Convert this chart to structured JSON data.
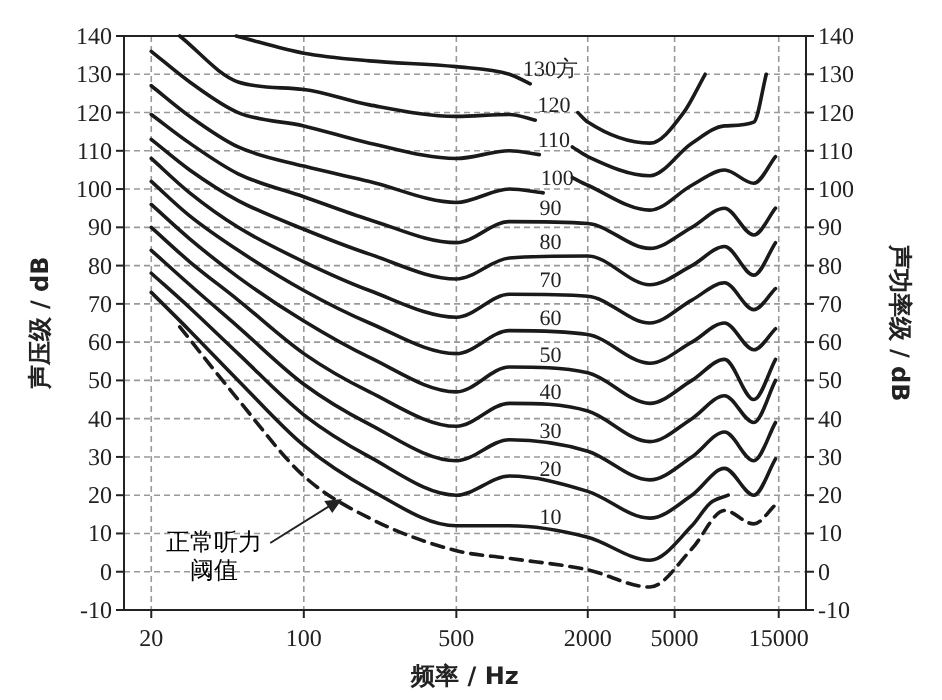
{
  "chart_data": {
    "type": "line",
    "xlabel": "频率 / Hz",
    "ylabel": "声压级 / dB",
    "y2label": "声功率级 / dB",
    "log": "x",
    "grid": true,
    "xlim": [
      15,
      20000
    ],
    "xticks": [
      20,
      100,
      500,
      2000,
      5000,
      15000
    ],
    "ylim": [
      -10,
      140
    ],
    "yticks": [
      -10,
      0,
      10,
      20,
      30,
      40,
      50,
      60,
      70,
      80,
      90,
      100,
      110,
      120,
      130,
      140
    ],
    "y2lim": [
      -10,
      140
    ],
    "y2ticks": [
      -10,
      0,
      10,
      20,
      30,
      40,
      50,
      60,
      70,
      80,
      90,
      100,
      110,
      120,
      130,
      140
    ],
    "series": [
      {
        "name": "130方",
        "color": "#1a1a1a",
        "x": [
          49,
          100,
          200,
          500,
          875,
          1090
        ],
        "values": [
          140,
          135.5,
          133.5,
          132,
          130,
          127.5
        ]
      },
      {
        "name": "120",
        "color": "#1a1a1a",
        "x": [
          27,
          50,
          100,
          200,
          500,
          875,
          1150,
          1400,
          1800,
          2000,
          3850,
          5500,
          6900
        ],
        "values": [
          140,
          128,
          126,
          122,
          119,
          119.5,
          118,
          null,
          120,
          117.5,
          112,
          120,
          130
        ]
      },
      {
        "name": "110",
        "color": "#1a1a1a",
        "x": [
          20,
          30,
          50,
          100,
          200,
          500,
          875,
          1200,
          1400,
          1700,
          2000,
          3850,
          6000,
          8470,
          11530,
          13150
        ],
        "values": [
          136,
          128,
          120,
          116.5,
          112,
          108,
          110,
          109,
          null,
          111,
          108.5,
          103.5,
          112,
          116.5,
          117.5,
          130
        ]
      },
      {
        "name": "100",
        "color": "#1a1a1a",
        "x": [
          20,
          30,
          50,
          100,
          200,
          500,
          875,
          1250,
          1450,
          1700,
          2000,
          3850,
          6000,
          8470,
          11530,
          14500
        ],
        "values": [
          127,
          119,
          111,
          106,
          102,
          96.5,
          100,
          99,
          null,
          103,
          101,
          94.5,
          101,
          105,
          101.5,
          108.5
        ]
      },
      {
        "name": "90",
        "color": "#1a1a1a",
        "x": [
          20,
          30,
          50,
          100,
          200,
          500,
          875,
          2000,
          3850,
          6000,
          8470,
          11530,
          14500
        ],
        "values": [
          119.5,
          112,
          104,
          98,
          92,
          86,
          91.5,
          91,
          84.5,
          90,
          95,
          88,
          95
        ]
      },
      {
        "name": "80",
        "color": "#1a1a1a",
        "x": [
          20,
          30,
          50,
          100,
          200,
          500,
          875,
          2000,
          3850,
          6000,
          8470,
          11530,
          14500
        ],
        "values": [
          113,
          105,
          97,
          89.5,
          83,
          76.5,
          82,
          82.5,
          75,
          80,
          85,
          77.5,
          86
        ]
      },
      {
        "name": "70",
        "color": "#1a1a1a",
        "x": [
          20,
          30,
          50,
          100,
          200,
          500,
          875,
          2000,
          3850,
          6000,
          8470,
          11530,
          14500
        ],
        "values": [
          108,
          99,
          90,
          81,
          73.5,
          66.5,
          72.5,
          72,
          65,
          71,
          75.5,
          68.5,
          74
        ]
      },
      {
        "name": "60",
        "color": "#1a1a1a",
        "x": [
          20,
          30,
          50,
          100,
          200,
          500,
          875,
          2000,
          3850,
          6000,
          8470,
          11530,
          14500
        ],
        "values": [
          102,
          93,
          84,
          73.5,
          65,
          57,
          63,
          62,
          54.5,
          60,
          65,
          58,
          63.5
        ]
      },
      {
        "name": "50",
        "color": "#1a1a1a",
        "x": [
          20,
          30,
          50,
          100,
          200,
          500,
          875,
          2000,
          3850,
          6000,
          8470,
          11530,
          14500
        ],
        "values": [
          96,
          87,
          77,
          65.5,
          56,
          47,
          53.5,
          52,
          44,
          50,
          55.5,
          45,
          55.5
        ]
      },
      {
        "name": "40",
        "color": "#1a1a1a",
        "x": [
          20,
          30,
          50,
          100,
          200,
          500,
          875,
          2000,
          3850,
          6000,
          8470,
          11530,
          14500
        ],
        "values": [
          90,
          81,
          71,
          57,
          47,
          38,
          44,
          42,
          34,
          40,
          46,
          39,
          50
        ]
      },
      {
        "name": "30",
        "color": "#1a1a1a",
        "x": [
          20,
          30,
          50,
          100,
          200,
          500,
          875,
          2000,
          3850,
          6000,
          8470,
          11530,
          14500
        ],
        "values": [
          84,
          75,
          64,
          49,
          38.5,
          29,
          34.5,
          31.5,
          24,
          30,
          36.5,
          29,
          39
        ]
      },
      {
        "name": "20",
        "color": "#1a1a1a",
        "x": [
          20,
          30,
          50,
          100,
          200,
          500,
          875,
          2000,
          3850,
          6000,
          8470,
          11530,
          14500
        ],
        "values": [
          78,
          69,
          57,
          41,
          30,
          20,
          25,
          21,
          14,
          20,
          27,
          20,
          29.5
        ]
      },
      {
        "name": "10",
        "color": "#1a1a1a",
        "x": [
          20,
          30,
          50,
          100,
          200,
          500,
          875,
          2000,
          3850,
          6000,
          7300,
          8800
        ],
        "values": [
          73,
          63,
          50,
          33,
          21.5,
          12,
          12,
          9,
          3,
          12,
          18,
          20
        ]
      },
      {
        "color": "#1a1a1a",
        "line_style": "dashed",
        "x": [
          27,
          50,
          100,
          200,
          500,
          875,
          2000,
          3850,
          6000,
          8470,
          11530,
          14500
        ],
        "values": [
          64,
          45,
          25,
          14,
          5.5,
          3.5,
          0.5,
          -4,
          6,
          16,
          12.5,
          17.5
        ]
      }
    ],
    "annotations": [
      {
        "text": "正常听力阈值",
        "x": 150,
        "y": 19
      }
    ]
  }
}
